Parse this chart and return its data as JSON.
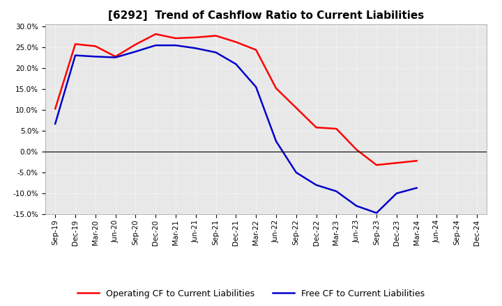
{
  "title": "[6292]  Trend of Cashflow Ratio to Current Liabilities",
  "x_labels": [
    "Sep-19",
    "Dec-19",
    "Mar-20",
    "Jun-20",
    "Sep-20",
    "Dec-20",
    "Mar-21",
    "Jun-21",
    "Sep-21",
    "Dec-21",
    "Mar-22",
    "Jun-22",
    "Sep-22",
    "Dec-22",
    "Mar-23",
    "Jun-23",
    "Sep-23",
    "Dec-23",
    "Mar-24",
    "Jun-24",
    "Sep-24",
    "Dec-24"
  ],
  "operating_cf": [
    0.103,
    0.258,
    0.253,
    0.228,
    0.257,
    0.282,
    0.272,
    0.274,
    0.278,
    0.263,
    0.244,
    0.152,
    0.105,
    0.058,
    0.055,
    0.005,
    -0.032,
    -0.027,
    -0.022,
    null,
    null,
    null
  ],
  "free_cf": [
    0.067,
    0.231,
    0.228,
    0.226,
    0.24,
    0.255,
    0.255,
    0.248,
    0.238,
    0.21,
    0.155,
    0.025,
    -0.05,
    -0.08,
    -0.095,
    -0.13,
    -0.147,
    -0.1,
    -0.087,
    null,
    null,
    null
  ],
  "operating_color": "#FF0000",
  "free_color": "#0000CC",
  "ylim": [
    -0.15,
    0.305
  ],
  "yticks": [
    -0.15,
    -0.1,
    -0.05,
    0.0,
    0.05,
    0.1,
    0.15,
    0.2,
    0.25,
    0.3
  ],
  "plot_bgcolor": "#E8E8E8",
  "fig_bgcolor": "#FFFFFF",
  "grid_color": "#FFFFFF",
  "legend_op": "Operating CF to Current Liabilities",
  "legend_free": "Free CF to Current Liabilities",
  "title_fontsize": 11,
  "tick_fontsize": 7.5,
  "legend_fontsize": 9
}
